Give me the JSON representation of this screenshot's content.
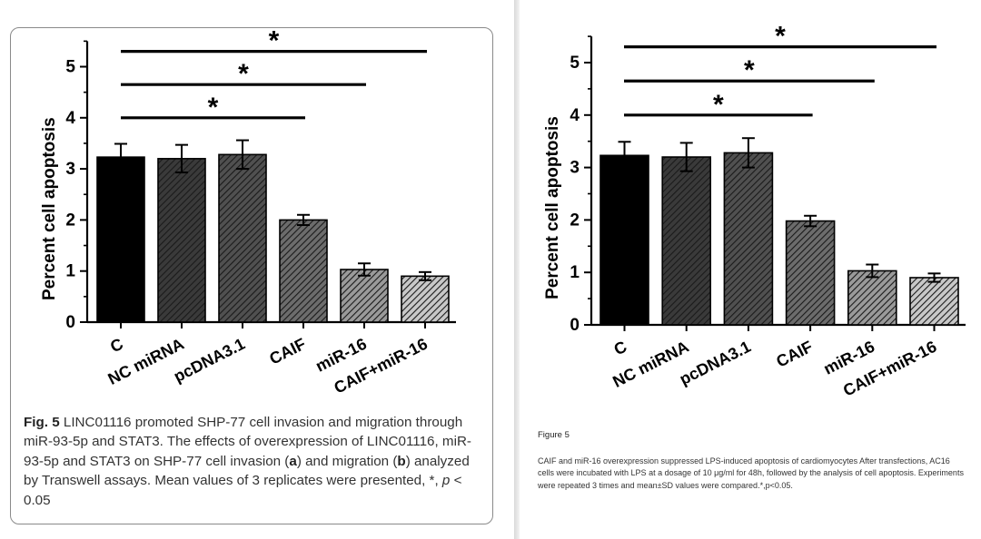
{
  "chart_data": [
    {
      "type": "bar",
      "categories": [
        "C",
        "NC miRNA",
        "pcDNA3.1",
        "CAIF",
        "miR-16",
        "CAIF+miR-16"
      ],
      "values": [
        3.23,
        3.2,
        3.28,
        2.0,
        1.03,
        0.9
      ],
      "errors": [
        0.26,
        0.27,
        0.28,
        0.1,
        0.12,
        0.08
      ],
      "ylabel": "Percent cell apoptosis",
      "ylim": [
        0,
        5.5
      ],
      "yticks": [
        "0",
        "1",
        "2",
        "3",
        "4",
        "5"
      ],
      "significance": [
        {
          "from": "C",
          "to": "CAIF",
          "y": 4.0,
          "label": "*"
        },
        {
          "from": "C",
          "to": "miR-16",
          "y": 4.65,
          "label": "*"
        },
        {
          "from": "C",
          "to": "CAIF+miR-16",
          "y": 5.3,
          "label": "*"
        }
      ],
      "bar_styles": [
        "solid-black",
        "dark-hatch",
        "dark-hatch",
        "medium-hatch",
        "light-hatch",
        "lightest-hatch"
      ]
    },
    {
      "type": "bar",
      "categories": [
        "C",
        "NC miRNA",
        "pcDNA3.1",
        "CAIF",
        "miR-16",
        "CAIF+miR-16"
      ],
      "values": [
        3.23,
        3.2,
        3.28,
        1.98,
        1.03,
        0.9
      ],
      "errors": [
        0.26,
        0.27,
        0.28,
        0.1,
        0.12,
        0.08
      ],
      "ylabel": "Percent cell apoptosis",
      "ylim": [
        0,
        5.5
      ],
      "yticks": [
        "0",
        "1",
        "2",
        "3",
        "4",
        "5"
      ],
      "significance": [
        {
          "from": "C",
          "to": "CAIF",
          "y": 4.0,
          "label": "*"
        },
        {
          "from": "C",
          "to": "miR-16",
          "y": 4.65,
          "label": "*"
        },
        {
          "from": "C",
          "to": "CAIF+miR-16",
          "y": 5.3,
          "label": "*"
        }
      ],
      "bar_styles": [
        "solid-black",
        "dark-hatch",
        "dark-hatch",
        "medium-hatch",
        "light-hatch",
        "lightest-hatch"
      ]
    }
  ],
  "colors": {
    "bar_fills": [
      "#000000",
      "#3a3a3a",
      "#505050",
      "#6c6c6c",
      "#9a9a9a",
      "#c8c8c8"
    ],
    "hatch": "#1a1a1a",
    "axis": "#000000"
  },
  "left_caption": {
    "fig_label": "Fig. 5",
    "text_1": " LINC01116 promoted SHP-77 cell invasion and migration through miR-93-5p and STAT3. The effects of overexpression of LINC01116, miR-93-5p and STAT3 on SHP-77 cell invasion (",
    "a": "a",
    "text_2": ") and migration (",
    "b": "b",
    "text_3": ") analyzed by Transwell assays. Mean values of 3 replicates were presented, *, ",
    "p": "p",
    "text_4": " < 0.05"
  },
  "right_caption": {
    "title": "Figure 5",
    "text": "CAIF and miR-16 overexpression suppressed LPS-induced apoptosis of cardiomyocytes After transfections, AC16 cells were incubated with LPS at a dosage of 10 μg/ml for 48h, followed by the analysis of cell apoptosis. Experiments were repeated 3 times and mean±SD values were compared.*,p<0.05."
  }
}
